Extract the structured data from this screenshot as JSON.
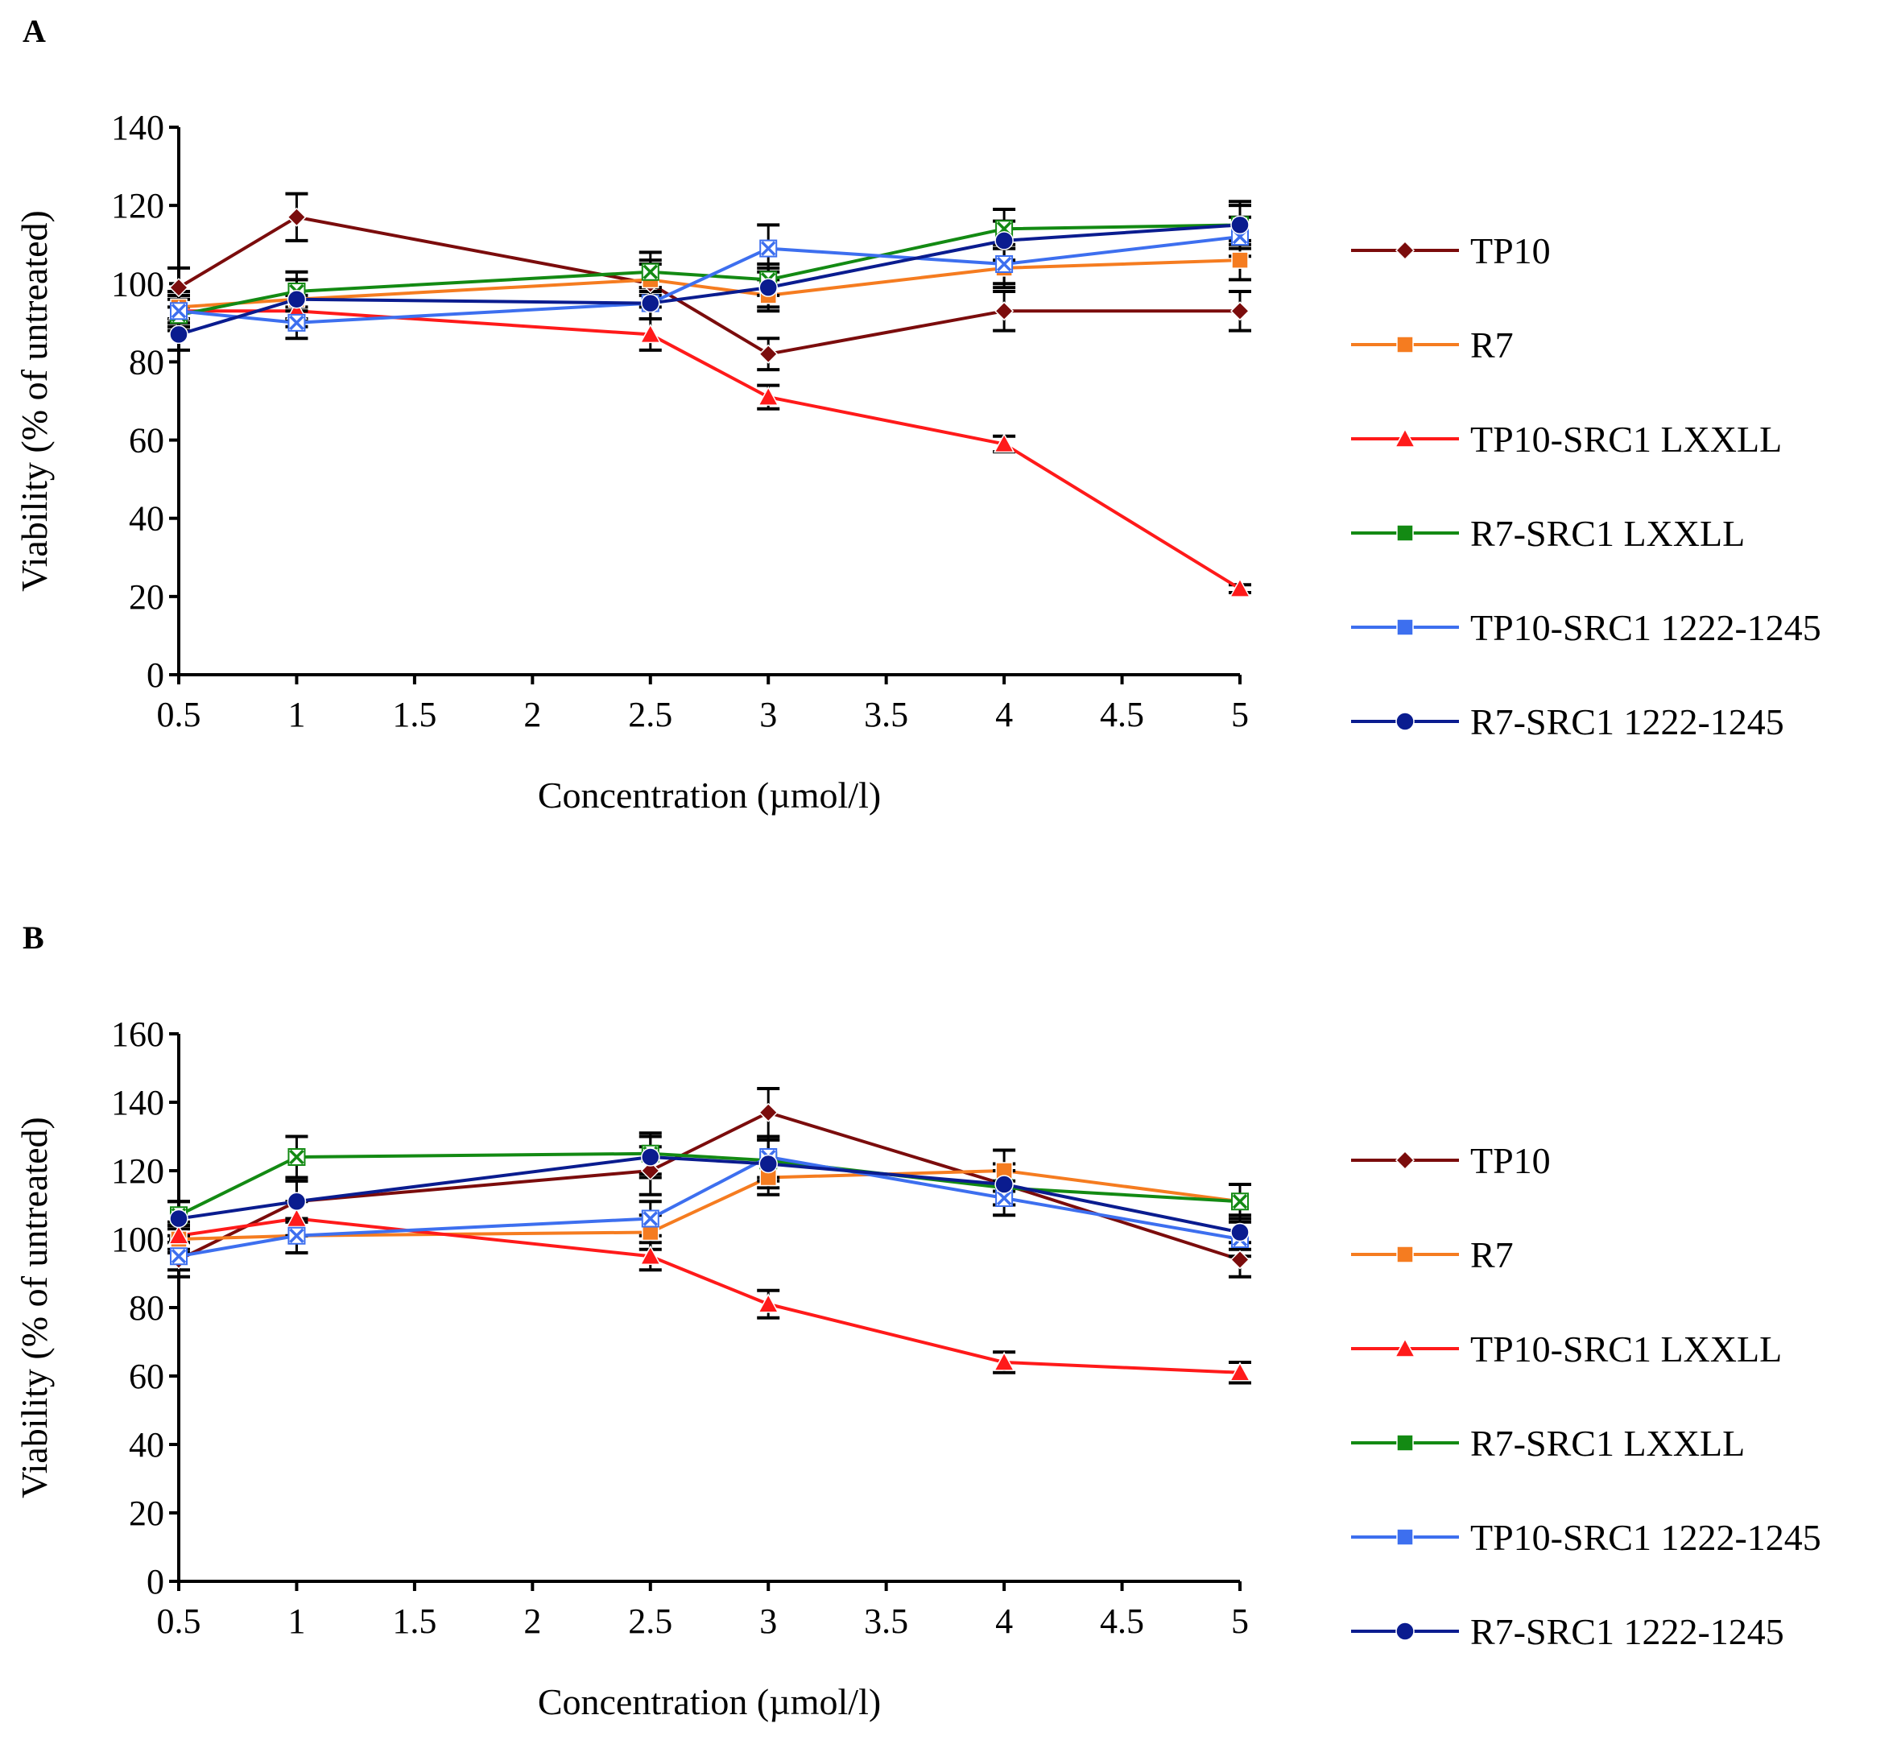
{
  "figure": {
    "panel_labels": [
      "A",
      "B"
    ]
  },
  "chart_data": [
    {
      "panel": "A",
      "type": "line",
      "title": "",
      "xlabel": "Concentration (µmol/l)",
      "ylabel": "Viability (% of untreated)",
      "x_ticks": [
        "0.5",
        "1",
        "1.5",
        "2",
        "2.5",
        "3",
        "3.5",
        "4",
        "4.5",
        "5"
      ],
      "x_data": [
        0.5,
        1,
        2.5,
        3,
        4,
        5
      ],
      "ylim": [
        0,
        140
      ],
      "y_ticks": [
        "0",
        "20",
        "40",
        "60",
        "80",
        "100",
        "120",
        "140"
      ],
      "legend_position": "right",
      "series": [
        {
          "name": "TP10",
          "color": "#7B0C0C",
          "marker": "diamond",
          "values": [
            99,
            117,
            100,
            82,
            93,
            93
          ],
          "errors": [
            5,
            6,
            6,
            4,
            5,
            5
          ]
        },
        {
          "name": "R7",
          "color": "#F57C20",
          "marker": "square",
          "values": [
            94,
            96,
            101,
            97,
            104,
            106
          ],
          "errors": [
            4,
            5,
            4,
            4,
            5,
            5
          ]
        },
        {
          "name": "TP10-SRC1 LXXLL",
          "color": "#FF1A1A",
          "marker": "triangle",
          "values": [
            93,
            93,
            87,
            71,
            59,
            22
          ],
          "errors": [
            4,
            4,
            4,
            3,
            2,
            1
          ]
        },
        {
          "name": "R7-SRC1 LXXLL",
          "color": "#138A13",
          "marker": "x-square",
          "values": [
            92,
            98,
            103,
            101,
            114,
            115
          ],
          "errors": [
            4,
            5,
            5,
            4,
            5,
            5
          ]
        },
        {
          "name": "TP10-SRC1 1222-1245",
          "color": "#3D6FEF",
          "marker": "x-square",
          "values": [
            93,
            90,
            95,
            109,
            105,
            112
          ],
          "errors": [
            4,
            4,
            4,
            6,
            5,
            5
          ]
        },
        {
          "name": "R7-SRC1 1222-1245",
          "color": "#0A1C8F",
          "marker": "circle",
          "values": [
            87,
            96,
            95,
            99,
            111,
            115
          ],
          "errors": [
            4,
            5,
            4,
            5,
            5,
            6
          ]
        }
      ]
    },
    {
      "panel": "B",
      "type": "line",
      "title": "",
      "xlabel": "Concentration (µmol/l)",
      "ylabel": "Viability (% of untreated)",
      "x_ticks": [
        "0.5",
        "1",
        "1.5",
        "2",
        "2.5",
        "3",
        "3.5",
        "4",
        "4.5",
        "5"
      ],
      "x_data": [
        0.5,
        1,
        2.5,
        3,
        4,
        5
      ],
      "ylim": [
        0,
        160
      ],
      "y_ticks": [
        "0",
        "20",
        "40",
        "60",
        "80",
        "100",
        "120",
        "140",
        "160"
      ],
      "legend_position": "right",
      "series": [
        {
          "name": "TP10",
          "color": "#7B0C0C",
          "marker": "diamond",
          "values": [
            94,
            111,
            120,
            137,
            116,
            94
          ],
          "errors": [
            5,
            6,
            7,
            7,
            6,
            5
          ]
        },
        {
          "name": "R7",
          "color": "#F57C20",
          "marker": "square",
          "values": [
            100,
            101,
            102,
            118,
            120,
            111
          ],
          "errors": [
            4,
            5,
            5,
            5,
            6,
            5
          ]
        },
        {
          "name": "TP10-SRC1 LXXLL",
          "color": "#FF1A1A",
          "marker": "triangle",
          "values": [
            101,
            106,
            95,
            81,
            64,
            61
          ],
          "errors": [
            4,
            5,
            4,
            4,
            3,
            3
          ]
        },
        {
          "name": "R7-SRC1 LXXLL",
          "color": "#138A13",
          "marker": "x-square",
          "values": [
            107,
            124,
            125,
            123,
            115,
            111
          ],
          "errors": [
            4,
            6,
            6,
            6,
            5,
            5
          ]
        },
        {
          "name": "TP10-SRC1 1222-1245",
          "color": "#3D6FEF",
          "marker": "x-square",
          "values": [
            95,
            101,
            106,
            124,
            112,
            100
          ],
          "errors": [
            4,
            5,
            5,
            6,
            5,
            5
          ]
        },
        {
          "name": "R7-SRC1 1222-1245",
          "color": "#0A1C8F",
          "marker": "circle",
          "values": [
            106,
            111,
            124,
            122,
            116,
            102
          ],
          "errors": [
            5,
            6,
            6,
            7,
            6,
            5
          ]
        }
      ]
    }
  ]
}
